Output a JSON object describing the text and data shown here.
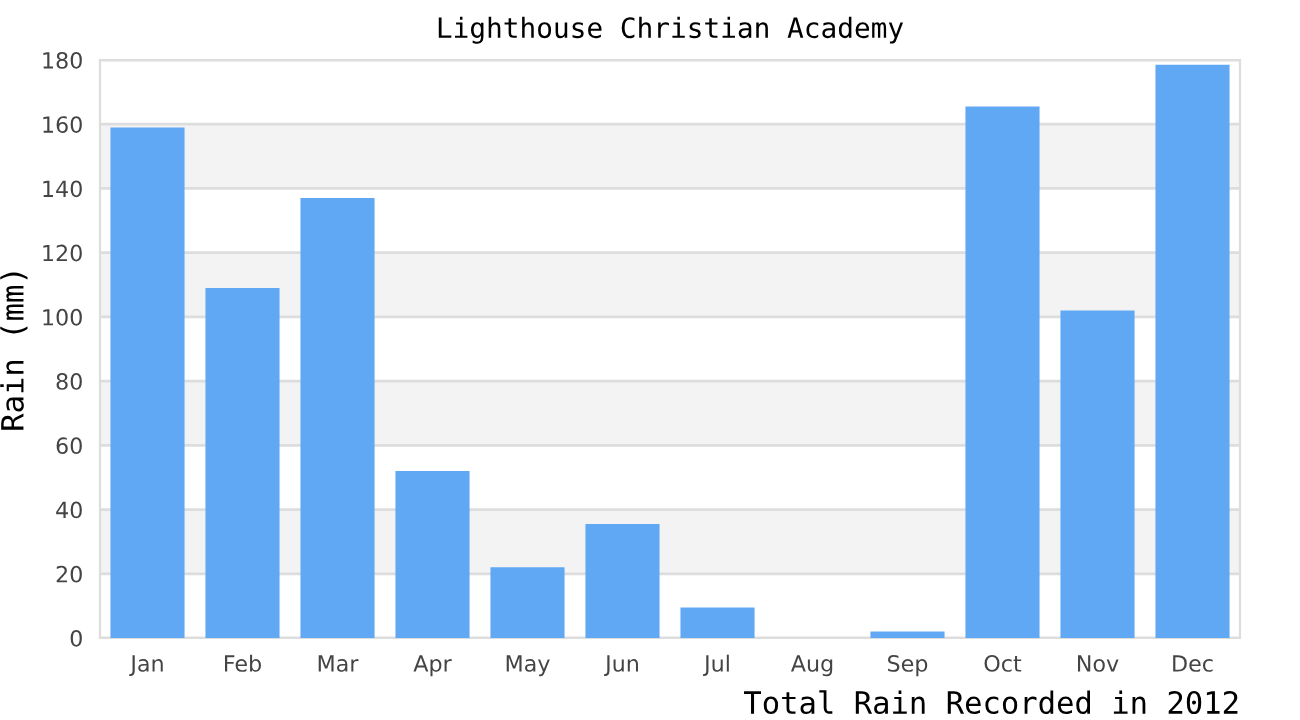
{
  "chart_data": {
    "type": "bar",
    "title": "Lighthouse Christian Academy",
    "xlabel": "Total Rain Recorded in 2012",
    "ylabel": "Rain (mm)",
    "categories": [
      "Jan",
      "Feb",
      "Mar",
      "Apr",
      "May",
      "Jun",
      "Jul",
      "Aug",
      "Sep",
      "Oct",
      "Nov",
      "Dec"
    ],
    "values": [
      159,
      109,
      137,
      52,
      22,
      35.5,
      9.5,
      0,
      2,
      165.5,
      102,
      178.5
    ],
    "color": "#60a8f4",
    "ylim": [
      0,
      180
    ],
    "yticks": [
      0,
      20,
      40,
      60,
      80,
      100,
      120,
      140,
      160,
      180
    ],
    "grid": "y"
  }
}
